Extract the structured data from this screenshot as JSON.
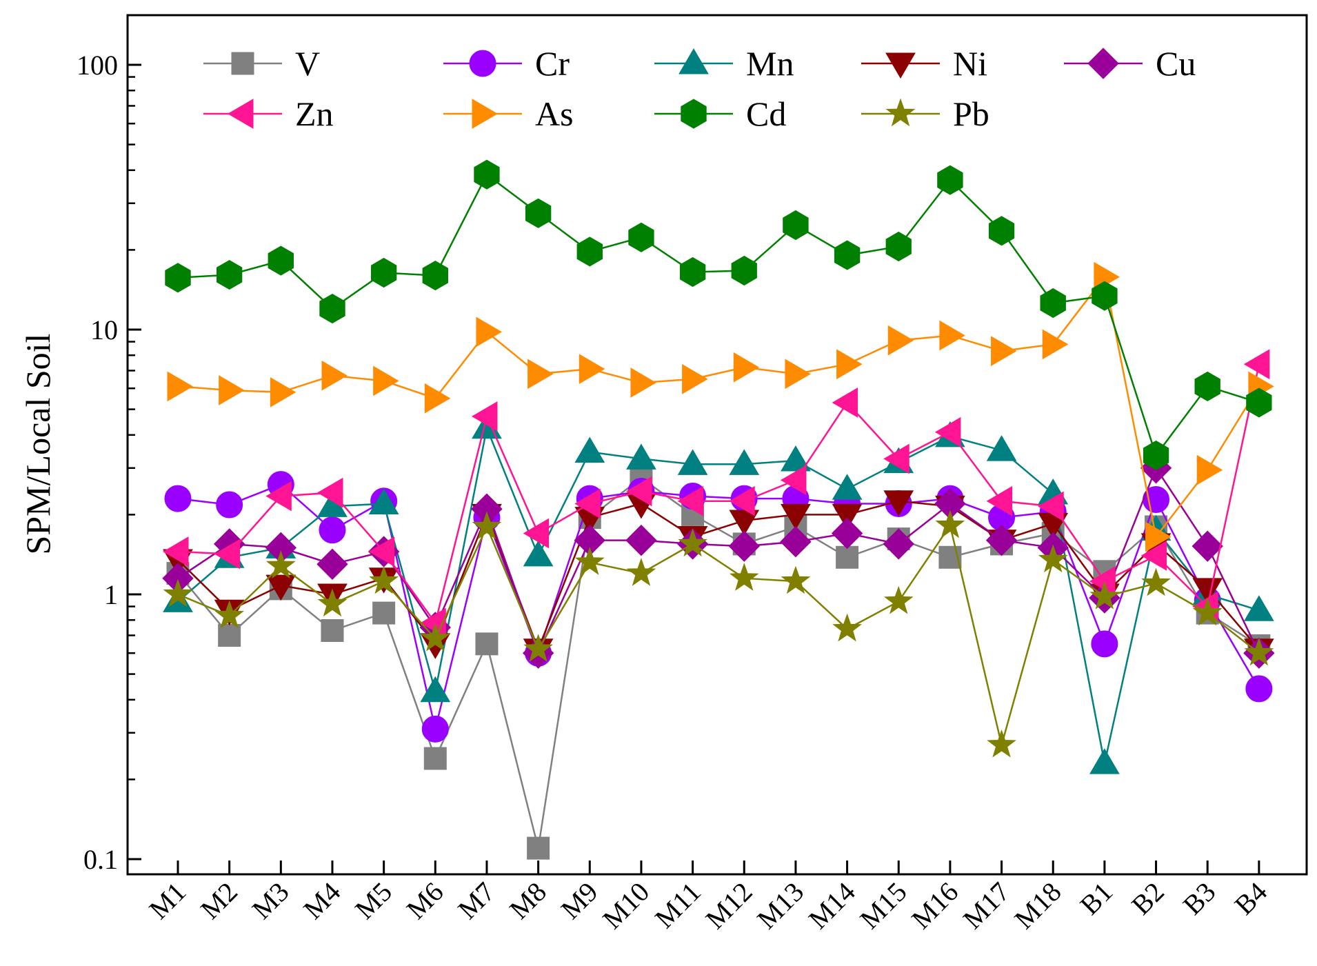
{
  "chart_data": {
    "type": "line",
    "title": "",
    "xlabel": "",
    "ylabel": "SPM/Local Soil",
    "yscale": "log",
    "ylim": [
      0.1,
      150
    ],
    "yticks": [
      {
        "value": 0.1,
        "label": "0.1"
      },
      {
        "value": 1,
        "label": "1"
      },
      {
        "value": 10,
        "label": "10"
      },
      {
        "value": 100,
        "label": "100"
      }
    ],
    "grid": false,
    "legend_position": "top",
    "categories": [
      "M1",
      "M2",
      "M3",
      "M4",
      "M5",
      "M6",
      "M7",
      "M8",
      "M9",
      "M10",
      "M11",
      "M12",
      "M13",
      "M14",
      "M15",
      "M16",
      "M17",
      "M18",
      "B1",
      "B2",
      "B3",
      "B4"
    ],
    "series": [
      {
        "name": "V",
        "color": "#808080",
        "marker": "square",
        "values": [
          1.2,
          0.7,
          1.05,
          0.73,
          0.85,
          0.24,
          0.65,
          0.11,
          1.95,
          2.75,
          2.0,
          1.55,
          1.8,
          1.38,
          1.62,
          1.38,
          1.55,
          1.7,
          1.22,
          1.8,
          0.85,
          0.64
        ]
      },
      {
        "name": "Cr",
        "color": "#9900ff",
        "marker": "circle",
        "values": [
          2.3,
          2.18,
          2.6,
          1.75,
          2.25,
          0.31,
          1.95,
          0.6,
          2.3,
          2.45,
          2.35,
          2.3,
          2.3,
          2.2,
          2.2,
          2.3,
          1.95,
          2.05,
          0.65,
          2.28,
          0.95,
          0.44
        ]
      },
      {
        "name": "Mn",
        "color": "#008080",
        "marker": "triangle-up",
        "values": [
          0.94,
          1.38,
          1.5,
          2.15,
          2.2,
          0.43,
          4.25,
          1.4,
          3.45,
          3.25,
          3.1,
          3.1,
          3.2,
          2.5,
          3.15,
          3.95,
          3.5,
          2.4,
          0.23,
          1.75,
          1.0,
          0.87
        ]
      },
      {
        "name": "Ni",
        "color": "#8b0000",
        "marker": "triangle-down",
        "values": [
          1.35,
          0.87,
          1.08,
          1.0,
          1.15,
          0.65,
          2.0,
          0.62,
          1.95,
          2.2,
          1.65,
          1.9,
          2.0,
          2.0,
          2.25,
          2.15,
          1.6,
          1.85,
          1.0,
          1.55,
          1.05,
          0.62
        ]
      },
      {
        "name": "Cu",
        "color": "#990099",
        "marker": "diamond",
        "values": [
          1.15,
          1.55,
          1.5,
          1.3,
          1.45,
          0.75,
          2.1,
          0.6,
          1.6,
          1.6,
          1.55,
          1.52,
          1.58,
          1.7,
          1.55,
          2.2,
          1.6,
          1.5,
          0.97,
          3.0,
          1.52,
          0.6
        ]
      },
      {
        "name": "Zn",
        "color": "#ff1493",
        "marker": "triangle-left",
        "values": [
          1.45,
          1.42,
          2.35,
          2.42,
          1.45,
          0.78,
          4.7,
          1.7,
          2.2,
          2.45,
          2.25,
          2.25,
          2.7,
          5.3,
          3.25,
          4.1,
          2.25,
          2.15,
          1.12,
          1.4,
          0.9,
          7.4
        ]
      },
      {
        "name": "As",
        "color": "#ff8c00",
        "marker": "triangle-right",
        "values": [
          6.1,
          5.9,
          5.8,
          6.7,
          6.4,
          5.5,
          9.8,
          6.8,
          7.1,
          6.3,
          6.5,
          7.2,
          6.8,
          7.4,
          9.1,
          9.5,
          8.3,
          8.8,
          15.8,
          1.65,
          2.95,
          6.1
        ]
      },
      {
        "name": "Cd",
        "color": "#008000",
        "marker": "hexagon",
        "values": [
          15.7,
          16.1,
          18.2,
          12.0,
          16.4,
          16.0,
          38.5,
          27.5,
          19.7,
          22.3,
          16.5,
          16.7,
          24.8,
          19.1,
          20.6,
          36.7,
          23.6,
          12.6,
          13.4,
          3.35,
          6.1,
          5.3
        ]
      },
      {
        "name": "Pb",
        "color": "#808000",
        "marker": "star",
        "values": [
          1.0,
          0.83,
          1.28,
          0.92,
          1.12,
          0.68,
          1.8,
          0.62,
          1.32,
          1.2,
          1.55,
          1.15,
          1.12,
          0.74,
          0.94,
          1.82,
          0.27,
          1.35,
          0.98,
          1.1,
          0.85,
          0.6
        ]
      }
    ]
  }
}
